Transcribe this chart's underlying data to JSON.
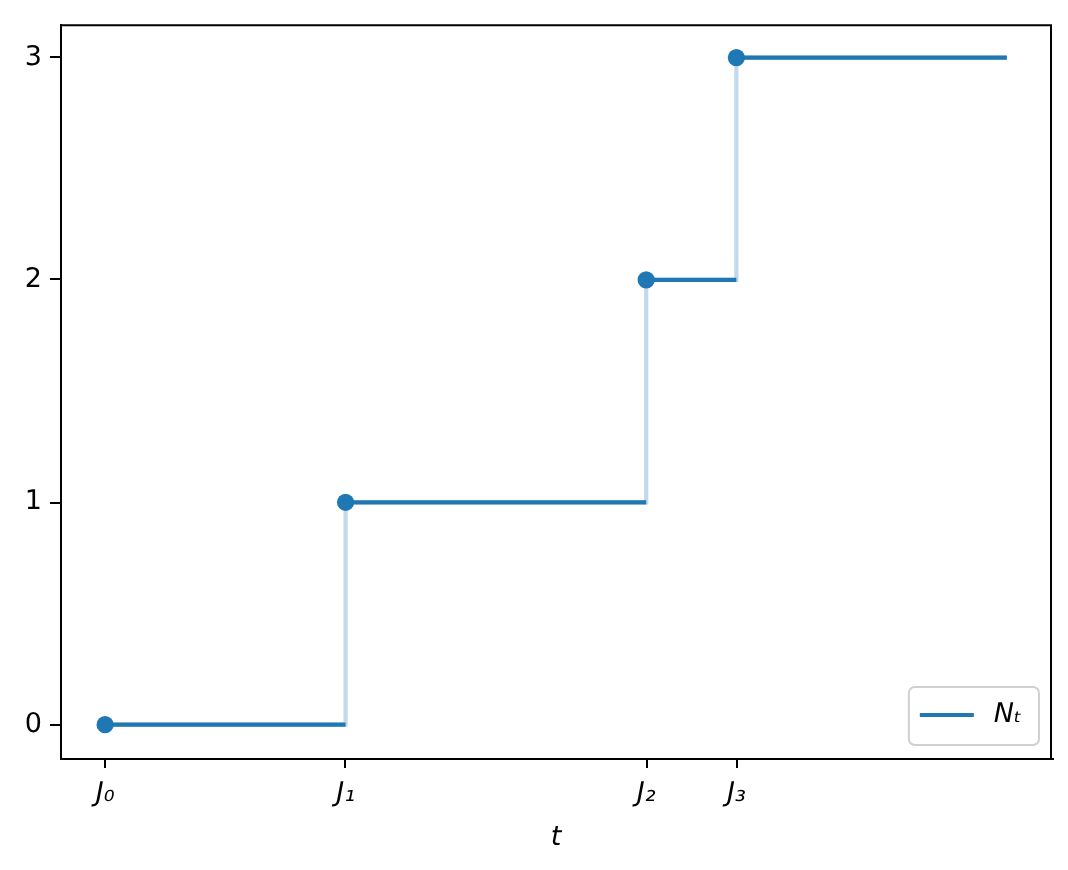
{
  "chart_data": {
    "type": "step",
    "xlabel": "t",
    "categories": [
      "J₀",
      null,
      null,
      null,
      null,
      null,
      null,
      null,
      "J₁",
      null,
      null,
      null,
      null,
      null,
      null,
      null,
      null,
      null,
      "J₂",
      null,
      null,
      "J₃",
      null,
      null,
      null,
      null,
      null,
      null,
      null,
      null,
      null
    ],
    "ylim": [
      -0.15,
      3.15
    ],
    "yticks": [
      0,
      1,
      2,
      3
    ],
    "legend": "bottom right",
    "series": [
      {
        "name": "Nₜ",
        "color": "#1f77b4",
        "values": [
          0,
          0,
          0,
          0,
          0,
          0,
          0,
          0,
          1,
          1,
          1,
          1,
          1,
          1,
          1,
          1,
          1,
          1,
          2,
          2,
          2,
          3,
          3,
          3,
          3,
          3,
          3,
          3,
          3,
          3,
          3
        ]
      },
      {
        "type": "scatter",
        "color": "#1f77b4",
        "marker": "circle",
        "values": [
          0,
          null,
          null,
          null,
          null,
          null,
          null,
          null,
          1,
          null,
          null,
          null,
          null,
          null,
          null,
          null,
          null,
          null,
          2,
          null,
          null,
          3,
          null,
          null,
          null,
          null,
          null,
          null,
          null,
          null,
          null
        ]
      }
    ]
  }
}
